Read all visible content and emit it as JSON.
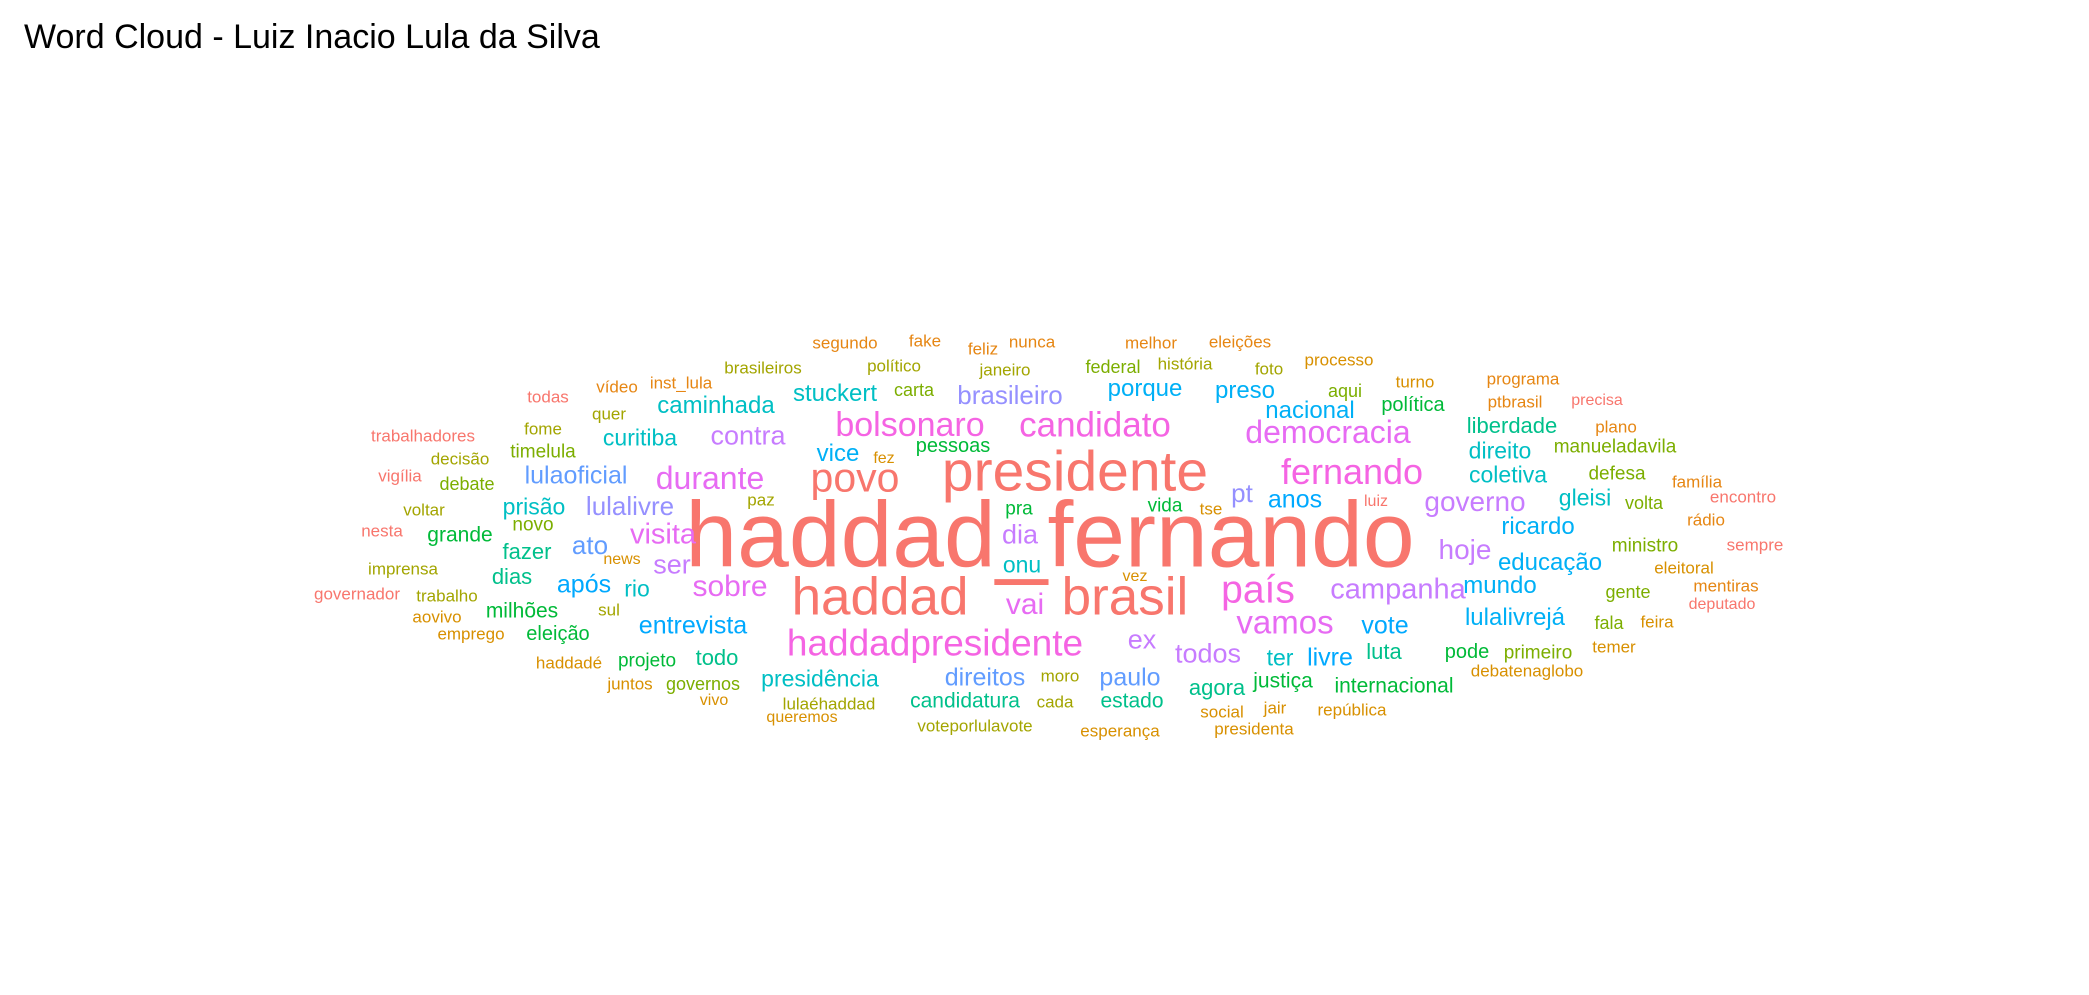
{
  "chart_data": {
    "type": "wordcloud",
    "title": "Word Cloud - Luiz Inacio Lula da Silva",
    "words": [
      {
        "text": "haddad_fernando",
        "weight": 100,
        "color": "#F8766D"
      },
      {
        "text": "presidente",
        "weight": 60,
        "color": "#F8766D"
      },
      {
        "text": "haddad",
        "weight": 55,
        "color": "#F8766D"
      },
      {
        "text": "brasil",
        "weight": 55,
        "color": "#F8766D"
      },
      {
        "text": "povo",
        "weight": 42,
        "color": "#F8766D"
      },
      {
        "text": "país",
        "weight": 40,
        "color": "#F564E3"
      },
      {
        "text": "haddadpresidente",
        "weight": 38,
        "color": "#F564E3"
      },
      {
        "text": "fernando",
        "weight": 37,
        "color": "#F564E3"
      },
      {
        "text": "candidato",
        "weight": 36,
        "color": "#F564E3"
      },
      {
        "text": "bolsonaro",
        "weight": 34,
        "color": "#F564E3"
      },
      {
        "text": "vamos",
        "weight": 33,
        "color": "#E76BF3"
      },
      {
        "text": "democracia",
        "weight": 32,
        "color": "#E76BF3"
      },
      {
        "text": "durante",
        "weight": 32,
        "color": "#E76BF3"
      },
      {
        "text": "sobre",
        "weight": 30,
        "color": "#E76BF3"
      },
      {
        "text": "vai",
        "weight": 30,
        "color": "#E76BF3"
      },
      {
        "text": "visita",
        "weight": 29,
        "color": "#E76BF3"
      },
      {
        "text": "campanha",
        "weight": 29,
        "color": "#C77CFF"
      },
      {
        "text": "governo",
        "weight": 28,
        "color": "#C77CFF"
      },
      {
        "text": "hoje",
        "weight": 28,
        "color": "#C77CFF"
      },
      {
        "text": "contra",
        "weight": 27,
        "color": "#C77CFF"
      },
      {
        "text": "todos",
        "weight": 27,
        "color": "#C77CFF"
      },
      {
        "text": "ser",
        "weight": 27,
        "color": "#C77CFF"
      },
      {
        "text": "dia",
        "weight": 27,
        "color": "#C77CFF"
      },
      {
        "text": "ex",
        "weight": 27,
        "color": "#C77CFF"
      },
      {
        "text": "brasileiro",
        "weight": 26,
        "color": "#9590FF"
      },
      {
        "text": "pt",
        "weight": 26,
        "color": "#9590FF"
      },
      {
        "text": "lulalivre",
        "weight": 25,
        "color": "#9590FF"
      },
      {
        "text": "ato",
        "weight": 25,
        "color": "#619CFF"
      },
      {
        "text": "lulaoficial",
        "weight": 24,
        "color": "#619CFF"
      },
      {
        "text": "paulo",
        "weight": 24,
        "color": "#619CFF"
      },
      {
        "text": "direitos",
        "weight": 24,
        "color": "#619CFF"
      },
      {
        "text": "após",
        "weight": 24,
        "color": "#00A9FF"
      },
      {
        "text": "anos",
        "weight": 24,
        "color": "#00A9FF"
      },
      {
        "text": "vote",
        "weight": 24,
        "color": "#00A9FF"
      },
      {
        "text": "livre",
        "weight": 24,
        "color": "#00A9FF"
      },
      {
        "text": "entrevista",
        "weight": 24,
        "color": "#00A9FF"
      },
      {
        "text": "mundo",
        "weight": 23,
        "color": "#00B0F6"
      },
      {
        "text": "lulalivrejá",
        "weight": 23,
        "color": "#00B0F6"
      },
      {
        "text": "nacional",
        "weight": 23,
        "color": "#00B0F6"
      },
      {
        "text": "educação",
        "weight": 23,
        "color": "#00B0F6"
      },
      {
        "text": "ricardo",
        "weight": 23,
        "color": "#00B0F6"
      },
      {
        "text": "preso",
        "weight": 23,
        "color": "#00B0F6"
      },
      {
        "text": "porque",
        "weight": 23,
        "color": "#00B0F6"
      },
      {
        "text": "vice",
        "weight": 23,
        "color": "#00B0F6"
      },
      {
        "text": "caminhada",
        "weight": 23,
        "color": "#00BFC4"
      },
      {
        "text": "stuckert",
        "weight": 23,
        "color": "#00BFC4"
      },
      {
        "text": "onu",
        "weight": 22,
        "color": "#00BFC4"
      },
      {
        "text": "curitiba",
        "weight": 22,
        "color": "#00BFC4"
      },
      {
        "text": "coletiva",
        "weight": 22,
        "color": "#00BFC4"
      },
      {
        "text": "gleisi",
        "weight": 22,
        "color": "#00BFC4"
      },
      {
        "text": "direito",
        "weight": 22,
        "color": "#00BFC4"
      },
      {
        "text": "presidência",
        "weight": 22,
        "color": "#00BFC4"
      },
      {
        "text": "ter",
        "weight": 22,
        "color": "#00BFC4"
      },
      {
        "text": "rio",
        "weight": 22,
        "color": "#00BFC4"
      },
      {
        "text": "prisão",
        "weight": 22,
        "color": "#00BFC4"
      },
      {
        "text": "fazer",
        "weight": 21,
        "color": "#00C08B"
      },
      {
        "text": "liberdade",
        "weight": 21,
        "color": "#00C08B"
      },
      {
        "text": "dias",
        "weight": 21,
        "color": "#00C08B"
      },
      {
        "text": "todo",
        "weight": 21,
        "color": "#00C08B"
      },
      {
        "text": "luta",
        "weight": 21,
        "color": "#00C08B"
      },
      {
        "text": "agora",
        "weight": 21,
        "color": "#00C08B"
      },
      {
        "text": "estado",
        "weight": 20,
        "color": "#00C08B"
      },
      {
        "text": "candidatura",
        "weight": 20,
        "color": "#00C08B"
      },
      {
        "text": "internacional",
        "weight": 20,
        "color": "#00BA38"
      },
      {
        "text": "justiça",
        "weight": 20,
        "color": "#00BA38"
      },
      {
        "text": "grande",
        "weight": 20,
        "color": "#00BA38"
      },
      {
        "text": "milhões",
        "weight": 20,
        "color": "#00BA38"
      },
      {
        "text": "política",
        "weight": 19,
        "color": "#00BA38"
      },
      {
        "text": "pessoas",
        "weight": 19,
        "color": "#00BA38"
      },
      {
        "text": "pode",
        "weight": 19,
        "color": "#00BA38"
      },
      {
        "text": "eleição",
        "weight": 19,
        "color": "#00BA38"
      },
      {
        "text": "projeto",
        "weight": 18,
        "color": "#00BA38"
      },
      {
        "text": "vida",
        "weight": 18,
        "color": "#00BA38"
      },
      {
        "text": "pra",
        "weight": 18,
        "color": "#00BA38"
      },
      {
        "text": "defesa",
        "weight": 18,
        "color": "#7CAE00"
      },
      {
        "text": "primeiro",
        "weight": 18,
        "color": "#7CAE00"
      },
      {
        "text": "manueladavila",
        "weight": 18,
        "color": "#7CAE00"
      },
      {
        "text": "timelula",
        "weight": 18,
        "color": "#7CAE00"
      },
      {
        "text": "ministro",
        "weight": 18,
        "color": "#7CAE00"
      },
      {
        "text": "novo",
        "weight": 18,
        "color": "#7CAE00"
      },
      {
        "text": "gente",
        "weight": 17,
        "color": "#7CAE00"
      },
      {
        "text": "governos",
        "weight": 17,
        "color": "#7CAE00"
      },
      {
        "text": "volta",
        "weight": 17,
        "color": "#7CAE00"
      },
      {
        "text": "fala",
        "weight": 17,
        "color": "#7CAE00"
      },
      {
        "text": "carta",
        "weight": 17,
        "color": "#7CAE00"
      },
      {
        "text": "federal",
        "weight": 17,
        "color": "#7CAE00"
      },
      {
        "text": "aqui",
        "weight": 17,
        "color": "#7CAE00"
      },
      {
        "text": "debate",
        "weight": 17,
        "color": "#7CAE00"
      },
      {
        "text": "moro",
        "weight": 16,
        "color": "#A3A500"
      },
      {
        "text": "cada",
        "weight": 16,
        "color": "#A3A500"
      },
      {
        "text": "voteporlulavote",
        "weight": 16,
        "color": "#A3A500"
      },
      {
        "text": "lulaéhaddad",
        "weight": 16,
        "color": "#A3A500"
      },
      {
        "text": "brasileiros",
        "weight": 16,
        "color": "#A3A500"
      },
      {
        "text": "político",
        "weight": 16,
        "color": "#A3A500"
      },
      {
        "text": "história",
        "weight": 16,
        "color": "#A3A500"
      },
      {
        "text": "janeiro",
        "weight": 16,
        "color": "#A3A500"
      },
      {
        "text": "foto",
        "weight": 16,
        "color": "#A3A500"
      },
      {
        "text": "quer",
        "weight": 16,
        "color": "#A3A500"
      },
      {
        "text": "fome",
        "weight": 16,
        "color": "#A3A500"
      },
      {
        "text": "decisão",
        "weight": 16,
        "color": "#A3A500"
      },
      {
        "text": "voltar",
        "weight": 16,
        "color": "#A3A500"
      },
      {
        "text": "imprensa",
        "weight": 16,
        "color": "#A3A500"
      },
      {
        "text": "trabalho",
        "weight": 15,
        "color": "#A3A500"
      },
      {
        "text": "sul",
        "weight": 15,
        "color": "#A3A500"
      },
      {
        "text": "paz",
        "weight": 15,
        "color": "#A3A500"
      },
      {
        "text": "tse",
        "weight": 15,
        "color": "#D89000"
      },
      {
        "text": "eleitoral",
        "weight": 15,
        "color": "#D89000"
      },
      {
        "text": "feira",
        "weight": 15,
        "color": "#D89000"
      },
      {
        "text": "temer",
        "weight": 15,
        "color": "#D89000"
      },
      {
        "text": "debatenaglobo",
        "weight": 15,
        "color": "#D89000"
      },
      {
        "text": "haddadé",
        "weight": 15,
        "color": "#D89000"
      },
      {
        "text": "juntos",
        "weight": 15,
        "color": "#D89000"
      },
      {
        "text": "vivo",
        "weight": 14,
        "color": "#D89000"
      },
      {
        "text": "queremos",
        "weight": 14,
        "color": "#D89000"
      },
      {
        "text": "esperança",
        "weight": 15,
        "color": "#D89000"
      },
      {
        "text": "presidenta",
        "weight": 15,
        "color": "#D89000"
      },
      {
        "text": "república",
        "weight": 15,
        "color": "#D89000"
      },
      {
        "text": "social",
        "weight": 15,
        "color": "#D89000"
      },
      {
        "text": "jair",
        "weight": 15,
        "color": "#D89000"
      },
      {
        "text": "vez",
        "weight": 14,
        "color": "#D89000"
      },
      {
        "text": "fez",
        "weight": 14,
        "color": "#D89000"
      },
      {
        "text": "news",
        "weight": 14,
        "color": "#D89000"
      },
      {
        "text": "aovivo",
        "weight": 15,
        "color": "#D89000"
      },
      {
        "text": "emprego",
        "weight": 15,
        "color": "#D89000"
      },
      {
        "text": "processo",
        "weight": 15,
        "color": "#D89000"
      },
      {
        "text": "turno",
        "weight": 15,
        "color": "#D89000"
      },
      {
        "text": "programa",
        "weight": 15,
        "color": "#E68613"
      },
      {
        "text": "ptbrasil",
        "weight": 15,
        "color": "#E68613"
      },
      {
        "text": "plano",
        "weight": 15,
        "color": "#E68613"
      },
      {
        "text": "família",
        "weight": 15,
        "color": "#E68613"
      },
      {
        "text": "rádio",
        "weight": 15,
        "color": "#E68613"
      },
      {
        "text": "mentiras",
        "weight": 15,
        "color": "#E68613"
      },
      {
        "text": "melhor",
        "weight": 15,
        "color": "#E68613"
      },
      {
        "text": "eleições",
        "weight": 15,
        "color": "#E68613"
      },
      {
        "text": "segundo",
        "weight": 15,
        "color": "#E68613"
      },
      {
        "text": "fake",
        "weight": 15,
        "color": "#E68613"
      },
      {
        "text": "feliz",
        "weight": 15,
        "color": "#E68613"
      },
      {
        "text": "nunca",
        "weight": 15,
        "color": "#E68613"
      },
      {
        "text": "vídeo",
        "weight": 15,
        "color": "#E68613"
      },
      {
        "text": "inst_lula",
        "weight": 15,
        "color": "#E68613"
      },
      {
        "text": "todas",
        "weight": 15,
        "color": "#F8766D"
      },
      {
        "text": "trabalhadores",
        "weight": 15,
        "color": "#F8766D"
      },
      {
        "text": "vigília",
        "weight": 15,
        "color": "#F8766D"
      },
      {
        "text": "nesta",
        "weight": 15,
        "color": "#F8766D"
      },
      {
        "text": "governador",
        "weight": 15,
        "color": "#F8766D"
      },
      {
        "text": "luiz",
        "weight": 14,
        "color": "#F8766D"
      },
      {
        "text": "encontro",
        "weight": 15,
        "color": "#F8766D"
      },
      {
        "text": "sempre",
        "weight": 15,
        "color": "#F8766D"
      },
      {
        "text": "deputado",
        "weight": 14,
        "color": "#F8766D"
      },
      {
        "text": "precisa",
        "weight": 14,
        "color": "#F8766D"
      }
    ]
  }
}
